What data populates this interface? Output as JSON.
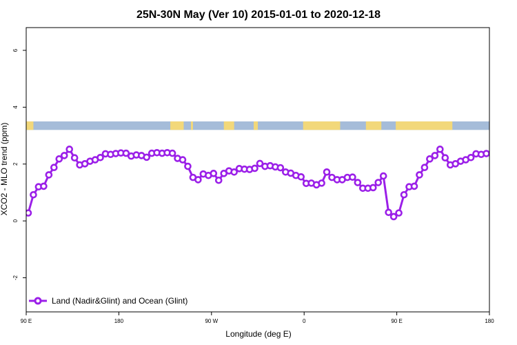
{
  "chart_data": {
    "type": "line",
    "title": "25N-30N May (Ver 10)   2015-01-01 to 2020-12-18",
    "xlabel": "Longitude (deg E)",
    "ylabel": "XCO2 - MLO trend (ppm)",
    "xlim": [
      90,
      540
    ],
    "ylim": [
      -3.2,
      6.8
    ],
    "x_ticks": [
      {
        "value": 90,
        "label": "90 E"
      },
      {
        "value": 180,
        "label": "180"
      },
      {
        "value": 270,
        "label": "90 W"
      },
      {
        "value": 360,
        "label": "0"
      },
      {
        "value": 450,
        "label": "90 E"
      },
      {
        "value": 540,
        "label": "180"
      }
    ],
    "y_ticks": [
      {
        "value": -2,
        "label": "-2"
      },
      {
        "value": 0,
        "label": "0"
      },
      {
        "value": 2,
        "label": "2"
      },
      {
        "value": 4,
        "label": "4"
      },
      {
        "value": 6,
        "label": "6"
      }
    ],
    "series": [
      {
        "name": "Land (Nadir&Glint) and Ocean (Glint)",
        "color": "#9b1fe8",
        "x": [
          92,
          97,
          102,
          107,
          112,
          117,
          122,
          127,
          132,
          137,
          142,
          147,
          152,
          157,
          162,
          167,
          172,
          177,
          182,
          187,
          192,
          197,
          202,
          207,
          212,
          217,
          222,
          227,
          232,
          237,
          242,
          247,
          252,
          257,
          262,
          267,
          272,
          277,
          282,
          287,
          292,
          297,
          302,
          307,
          312,
          317,
          322,
          327,
          332,
          337,
          342,
          347,
          352,
          357,
          362,
          367,
          372,
          377,
          382,
          387,
          392,
          397,
          402,
          407,
          412,
          417,
          422,
          427,
          432,
          437,
          442,
          447,
          452,
          457,
          462,
          467,
          472,
          477,
          482,
          487,
          492,
          497,
          502,
          507,
          512,
          517,
          522,
          527,
          532,
          537
        ],
        "values": [
          0.28,
          0.92,
          1.2,
          1.22,
          1.62,
          1.88,
          2.18,
          2.3,
          2.52,
          2.22,
          1.97,
          2.01,
          2.1,
          2.15,
          2.23,
          2.36,
          2.34,
          2.37,
          2.39,
          2.38,
          2.28,
          2.32,
          2.3,
          2.24,
          2.38,
          2.4,
          2.38,
          2.4,
          2.38,
          2.2,
          2.15,
          1.92,
          1.53,
          1.45,
          1.65,
          1.6,
          1.67,
          1.43,
          1.67,
          1.76,
          1.72,
          1.84,
          1.82,
          1.81,
          1.85,
          2.02,
          1.92,
          1.94,
          1.9,
          1.87,
          1.72,
          1.68,
          1.6,
          1.55,
          1.32,
          1.33,
          1.27,
          1.33,
          1.72,
          1.53,
          1.45,
          1.45,
          1.53,
          1.54,
          1.35,
          1.15,
          1.15,
          1.17,
          1.35,
          1.58,
          0.3,
          0.15,
          0.28,
          0.92,
          1.2,
          1.22,
          1.62,
          1.88,
          2.18,
          2.3,
          2.52,
          2.22,
          1.97,
          2.01,
          2.1,
          2.15,
          2.23,
          2.36,
          2.34,
          2.37
        ]
      }
    ],
    "map_strip": {
      "ymin": 3.2,
      "ymax": 3.5,
      "land_color": "#f2d87a",
      "ocean_color": "#a5bcd9"
    },
    "legend": {
      "position": "bottom-left"
    },
    "grid": false
  }
}
